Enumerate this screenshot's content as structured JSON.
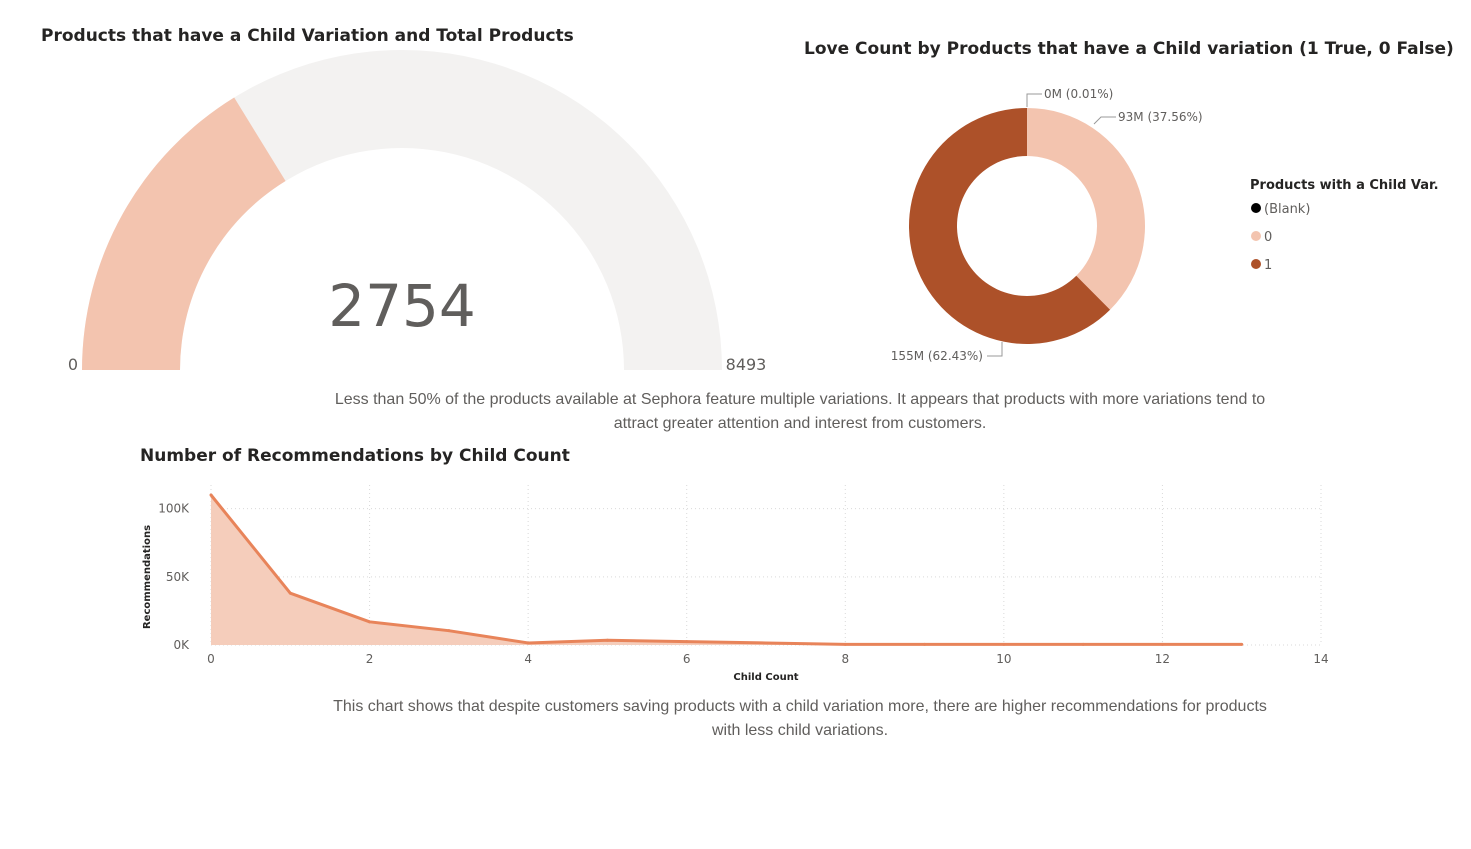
{
  "gauge": {
    "title": "Products that have a Child Variation and Total Products",
    "value": 2754,
    "value_label": "2754",
    "min_label": "0",
    "max_label": "8493",
    "min": 0,
    "max": 8493,
    "fill_color": "#f3c4af",
    "track_color": "#f3f2f1"
  },
  "donut": {
    "title": "Love Count by Products that have a Child variation (1 True, 0 False)",
    "legend_title": "Products with a Child Var.",
    "slices": [
      {
        "name": "(Blank)",
        "value": 0.01,
        "label": "0M (0.01%)",
        "color": "#000000"
      },
      {
        "name": "0",
        "value": 37.56,
        "label": "93M (37.56%)",
        "color": "#f3c4af"
      },
      {
        "name": "1",
        "value": 62.43,
        "label": "155M (62.43%)",
        "color": "#ad5129"
      }
    ]
  },
  "annotation_top": "Less than 50% of the products available at Sephora feature multiple variations. It appears that products with more variations tend to attract greater attention and interest from customers.",
  "annotation_bottom": "This chart shows that despite customers saving products with a child variation more, there are higher recommendations for products with less child variations.",
  "chart_data": [
    {
      "type": "pie",
      "title": "Love Count by Products that have a Child variation (1 True, 0 False)",
      "legend_title": "Products with a Child Var.",
      "categories": [
        "(Blank)",
        "0",
        "1"
      ],
      "values": [
        0.01,
        37.56,
        62.43
      ],
      "value_labels": [
        "0M (0.01%)",
        "93M (37.56%)",
        "155M (62.43%)"
      ]
    },
    {
      "type": "area",
      "title": "Number of Recommendations by Child Count",
      "xlabel": "Child Count",
      "ylabel": "Recommendations",
      "x": [
        0,
        1,
        2,
        3,
        4,
        5,
        6,
        7,
        8,
        9,
        10,
        11,
        12,
        13
      ],
      "values": [
        110000,
        38000,
        17000,
        10500,
        1500,
        3500,
        2500,
        1500,
        500,
        500,
        500,
        500,
        500,
        500
      ],
      "xlim": [
        0,
        14
      ],
      "ylim": [
        0,
        110000
      ],
      "xticks": [
        0,
        2,
        4,
        6,
        8,
        10,
        12,
        14
      ],
      "xtick_labels": [
        "0",
        "2",
        "4",
        "6",
        "8",
        "10",
        "12",
        "14"
      ],
      "yticks": [
        0,
        50000,
        100000
      ],
      "ytick_labels": [
        "0K",
        "50K",
        "100K"
      ],
      "grid": true,
      "line_color": "#e8845a",
      "fill_color": "#f5cdbb"
    }
  ]
}
